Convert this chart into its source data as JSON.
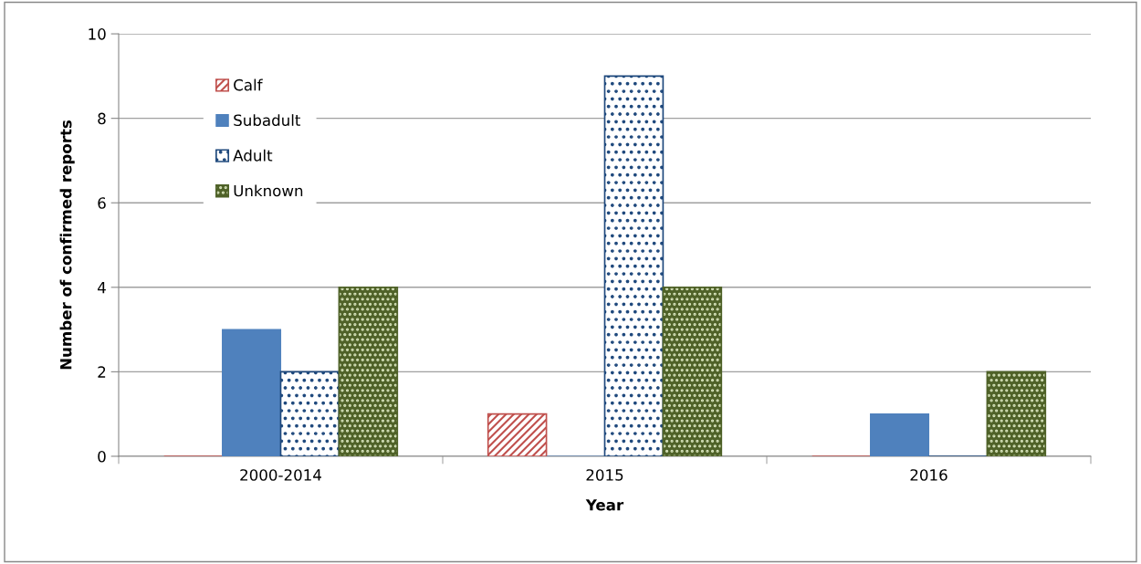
{
  "chart_data": {
    "type": "bar",
    "xlabel": "Year",
    "ylabel": "Number of confirmed reports",
    "categories": [
      "2000-2014",
      "2015",
      "2016"
    ],
    "series": [
      {
        "name": "Calf",
        "color": "#c0504d",
        "values": [
          0,
          1,
          0
        ]
      },
      {
        "name": "Subadult",
        "color": "#4f81bd",
        "values": [
          3,
          0,
          1
        ]
      },
      {
        "name": "Adult",
        "color": "#1f497d",
        "values": [
          2,
          9,
          0
        ]
      },
      {
        "name": "Unknown",
        "color": "#4f6228",
        "values": [
          4,
          4,
          2
        ]
      }
    ],
    "ylim": [
      0,
      10
    ],
    "yticks": [
      0,
      2,
      4,
      6,
      8,
      10
    ],
    "grid": "y",
    "legend": "top left"
  }
}
